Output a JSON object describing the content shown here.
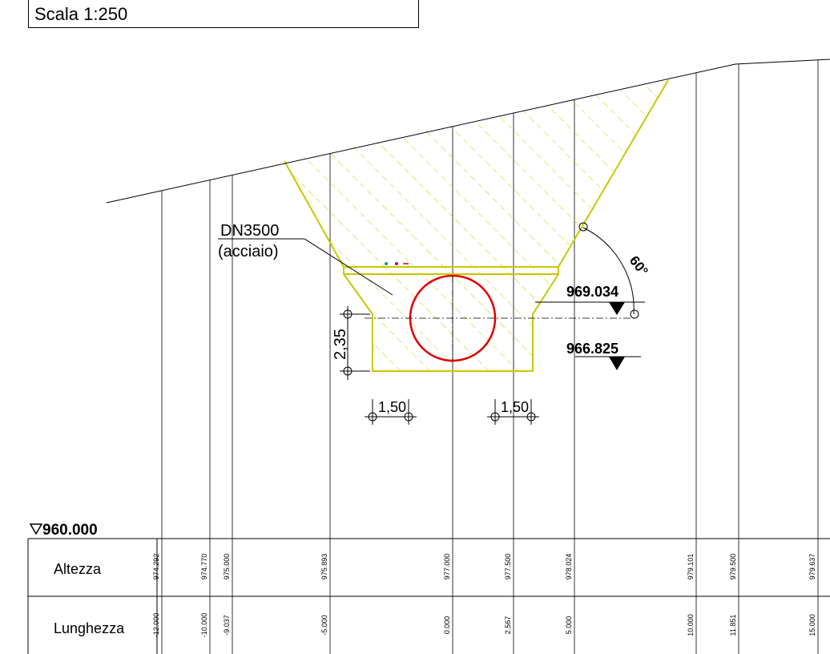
{
  "scale_label": "Scala 1:250",
  "pipe": {
    "label_line1": "DN3500",
    "label_line2": "(acciaio)",
    "color": "#e00000"
  },
  "trench_color": "#c8c800",
  "angle_label": "60°",
  "elevations": {
    "upper": "969.034",
    "lower": "966.825",
    "datum": "960.000"
  },
  "dimensions": {
    "vertical": "2,35",
    "left_width": "1,50",
    "right_width": "1,50"
  },
  "table": {
    "row1_label": "Altezza",
    "row2_label": "Lunghezza",
    "altezza": [
      "974.292",
      "974.770",
      "975.000",
      "975.893",
      "977.000",
      "977.500",
      "978.024",
      "979.101",
      "979.500",
      "979.637"
    ],
    "lunghezza": [
      "-12.000",
      "-10.000",
      "-9.037",
      "-5.000",
      "0.000",
      "2.567",
      "5.000",
      "10.000",
      "11.851",
      "15.000"
    ]
  }
}
